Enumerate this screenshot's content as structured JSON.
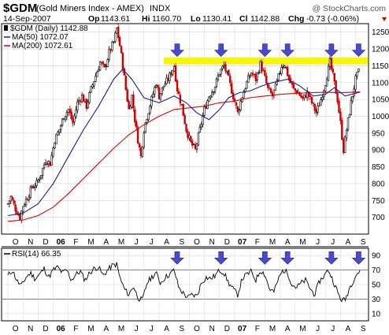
{
  "header": {
    "symbol": "$GDM",
    "name": "(Gold Miners Index - AMEX)",
    "exchange": "INDX",
    "date": "14-Sep-2007",
    "open_label": "Op",
    "open": "1143.61",
    "high_label": "Hi",
    "high": "1160.70",
    "low_label": "Lo",
    "low": "1130.41",
    "close_label": "Cl",
    "close": "1142.88",
    "chg_label": "Chg",
    "chg": "-0.73 (-0.06%)",
    "watermark": "@ StockCharts.com"
  },
  "legend": {
    "price": "$GDM (Daily) 1142.88",
    "ma50": "MA(50) 1072.07",
    "ma200": "MA(200) 1072.61",
    "rsi": "RSI(14) 66.35"
  },
  "colors": {
    "ma50": "#1a1f8c",
    "ma200": "#e00000",
    "up": "#000000",
    "down": "#cc0000",
    "highlight": "#f6f600",
    "arrow": "#4a4ad0",
    "grid": "#d4d4d4",
    "chg": "#cc0000"
  },
  "x_labels": [
    {
      "label": "O",
      "month": 0,
      "bold": false
    },
    {
      "label": "N",
      "month": 1,
      "bold": false
    },
    {
      "label": "D",
      "month": 2,
      "bold": false
    },
    {
      "label": "06",
      "month": 3,
      "bold": true
    },
    {
      "label": "F",
      "month": 4,
      "bold": false
    },
    {
      "label": "M",
      "month": 5,
      "bold": false
    },
    {
      "label": "A",
      "month": 6,
      "bold": false
    },
    {
      "label": "M",
      "month": 7,
      "bold": false
    },
    {
      "label": "J",
      "month": 8,
      "bold": false
    },
    {
      "label": "J",
      "month": 9,
      "bold": false
    },
    {
      "label": "A",
      "month": 10,
      "bold": false
    },
    {
      "label": "S",
      "month": 11,
      "bold": false
    },
    {
      "label": "O",
      "month": 12,
      "bold": false
    },
    {
      "label": "N",
      "month": 13,
      "bold": false
    },
    {
      "label": "D",
      "month": 14,
      "bold": false
    },
    {
      "label": "07",
      "month": 15,
      "bold": true
    },
    {
      "label": "F",
      "month": 16,
      "bold": false
    },
    {
      "label": "M",
      "month": 17,
      "bold": false
    },
    {
      "label": "A",
      "month": 18,
      "bold": false
    },
    {
      "label": "M",
      "month": 19,
      "bold": false
    },
    {
      "label": "J",
      "month": 20,
      "bold": false
    },
    {
      "label": "J",
      "month": 21,
      "bold": false
    },
    {
      "label": "A",
      "month": 22,
      "bold": false
    },
    {
      "label": "S",
      "month": 23,
      "bold": false
    }
  ],
  "chart_data": [
    {
      "type": "candlestick",
      "ylim": [
        650,
        1275
      ],
      "y_ticks": [
        700,
        750,
        800,
        850,
        900,
        950,
        1000,
        1050,
        1100,
        1150,
        1200,
        1250
      ],
      "x_unit": "months since Oct 2005",
      "price_path": [
        [
          0,
          740
        ],
        [
          0.2,
          760
        ],
        [
          0.5,
          725
        ],
        [
          0.8,
          700
        ],
        [
          1.0,
          735
        ],
        [
          1.3,
          760
        ],
        [
          1.6,
          790
        ],
        [
          1.9,
          800
        ],
        [
          2.2,
          830
        ],
        [
          2.5,
          870
        ],
        [
          2.8,
          860
        ],
        [
          3.1,
          930
        ],
        [
          3.4,
          960
        ],
        [
          3.7,
          1000
        ],
        [
          4.0,
          1020
        ],
        [
          4.3,
          980
        ],
        [
          4.6,
          1040
        ],
        [
          4.9,
          1060
        ],
        [
          5.2,
          1030
        ],
        [
          5.5,
          1080
        ],
        [
          5.8,
          1120
        ],
        [
          6.1,
          1160
        ],
        [
          6.4,
          1140
        ],
        [
          6.7,
          1190
        ],
        [
          7.0,
          1220
        ],
        [
          7.2,
          1260
        ],
        [
          7.4,
          1210
        ],
        [
          7.6,
          1150
        ],
        [
          7.8,
          1080
        ],
        [
          8.0,
          1020
        ],
        [
          8.2,
          1060
        ],
        [
          8.4,
          990
        ],
        [
          8.6,
          930
        ],
        [
          8.8,
          880
        ],
        [
          9.0,
          960
        ],
        [
          9.2,
          1000
        ],
        [
          9.5,
          1050
        ],
        [
          9.8,
          1100
        ],
        [
          10.0,
          1060
        ],
        [
          10.3,
          1090
        ],
        [
          10.6,
          1110
        ],
        [
          11.0,
          1150
        ],
        [
          11.2,
          1080
        ],
        [
          11.5,
          1030
        ],
        [
          11.8,
          960
        ],
        [
          12.1,
          920
        ],
        [
          12.4,
          900
        ],
        [
          12.7,
          960
        ],
        [
          13.0,
          1020
        ],
        [
          13.3,
          1060
        ],
        [
          13.7,
          1090
        ],
        [
          14.0,
          1130
        ],
        [
          14.3,
          1150
        ],
        [
          14.6,
          1110
        ],
        [
          14.9,
          1060
        ],
        [
          15.2,
          1010
        ],
        [
          15.5,
          1060
        ],
        [
          15.8,
          1100
        ],
        [
          16.1,
          1130
        ],
        [
          16.4,
          1110
        ],
        [
          16.7,
          1155
        ],
        [
          16.9,
          1130
        ],
        [
          17.2,
          1080
        ],
        [
          17.5,
          1060
        ],
        [
          17.8,
          1100
        ],
        [
          18.1,
          1150
        ],
        [
          18.3,
          1155
        ],
        [
          18.6,
          1110
        ],
        [
          18.9,
          1080
        ],
        [
          19.2,
          1070
        ],
        [
          19.5,
          1050
        ],
        [
          19.8,
          1070
        ],
        [
          20.1,
          1040
        ],
        [
          20.4,
          1010
        ],
        [
          20.7,
          1050
        ],
        [
          21.0,
          1100
        ],
        [
          21.3,
          1160
        ],
        [
          21.5,
          1120
        ],
        [
          21.8,
          1050
        ],
        [
          22.0,
          980
        ],
        [
          22.2,
          900
        ],
        [
          22.4,
          960
        ],
        [
          22.7,
          1040
        ],
        [
          23.0,
          1110
        ],
        [
          23.3,
          1143
        ]
      ],
      "ma50_path": [
        [
          0,
          705
        ],
        [
          1,
          712
        ],
        [
          2,
          740
        ],
        [
          3,
          800
        ],
        [
          4,
          880
        ],
        [
          5,
          960
        ],
        [
          6,
          1030
        ],
        [
          7,
          1110
        ],
        [
          7.6,
          1140
        ],
        [
          8.2,
          1110
        ],
        [
          9.0,
          1055
        ],
        [
          10.0,
          1040
        ],
        [
          11.0,
          1060
        ],
        [
          11.8,
          1040
        ],
        [
          12.5,
          1010
        ],
        [
          13.3,
          990
        ],
        [
          14.0,
          1020
        ],
        [
          14.6,
          1055
        ],
        [
          15.3,
          1070
        ],
        [
          16.0,
          1075
        ],
        [
          16.8,
          1090
        ],
        [
          17.5,
          1100
        ],
        [
          18.5,
          1110
        ],
        [
          19.3,
          1090
        ],
        [
          20.2,
          1060
        ],
        [
          21.0,
          1065
        ],
        [
          21.6,
          1085
        ],
        [
          22.3,
          1060
        ],
        [
          23.3,
          1072
        ]
      ],
      "ma200_path": [
        [
          0,
          688
        ],
        [
          1,
          692
        ],
        [
          2,
          705
        ],
        [
          3,
          730
        ],
        [
          4,
          770
        ],
        [
          5,
          815
        ],
        [
          6,
          860
        ],
        [
          7,
          905
        ],
        [
          8,
          945
        ],
        [
          9,
          975
        ],
        [
          10,
          1000
        ],
        [
          11,
          1020
        ],
        [
          12,
          1025
        ],
        [
          13,
          1030
        ],
        [
          14,
          1040
        ],
        [
          15,
          1045
        ],
        [
          16,
          1055
        ],
        [
          17,
          1060
        ],
        [
          18,
          1065
        ],
        [
          19,
          1068
        ],
        [
          20,
          1070
        ],
        [
          21,
          1071
        ],
        [
          22,
          1070
        ],
        [
          23.3,
          1072
        ]
      ],
      "highlight_band": [
        1155,
        1175
      ],
      "arrow_months": [
        11.2,
        14.1,
        17.0,
        18.5,
        21.4,
        23.2
      ]
    },
    {
      "type": "line",
      "name": "RSI(14)",
      "ylim": [
        0,
        100
      ],
      "y_ticks": [
        10,
        30,
        50,
        70,
        90
      ],
      "ref_lines": [
        30,
        70
      ],
      "rsi_path": [
        [
          0,
          62
        ],
        [
          0.3,
          70
        ],
        [
          0.6,
          55
        ],
        [
          0.9,
          48
        ],
        [
          1.2,
          60
        ],
        [
          1.5,
          66
        ],
        [
          1.8,
          58
        ],
        [
          2.1,
          64
        ],
        [
          2.4,
          72
        ],
        [
          2.7,
          60
        ],
        [
          3.0,
          70
        ],
        [
          3.3,
          74
        ],
        [
          3.6,
          66
        ],
        [
          3.9,
          70
        ],
        [
          4.2,
          56
        ],
        [
          4.5,
          64
        ],
        [
          4.8,
          68
        ],
        [
          5.1,
          56
        ],
        [
          5.4,
          66
        ],
        [
          5.7,
          72
        ],
        [
          6.0,
          74
        ],
        [
          6.3,
          62
        ],
        [
          6.6,
          70
        ],
        [
          6.9,
          76
        ],
        [
          7.2,
          78
        ],
        [
          7.4,
          60
        ],
        [
          7.7,
          44
        ],
        [
          8.0,
          36
        ],
        [
          8.3,
          48
        ],
        [
          8.6,
          32
        ],
        [
          8.9,
          28
        ],
        [
          9.2,
          52
        ],
        [
          9.5,
          60
        ],
        [
          9.8,
          66
        ],
        [
          10.1,
          52
        ],
        [
          10.4,
          60
        ],
        [
          10.7,
          64
        ],
        [
          11.0,
          70
        ],
        [
          11.3,
          46
        ],
        [
          11.6,
          38
        ],
        [
          11.9,
          32
        ],
        [
          12.2,
          36
        ],
        [
          12.5,
          34
        ],
        [
          12.8,
          52
        ],
        [
          13.1,
          60
        ],
        [
          13.4,
          58
        ],
        [
          13.7,
          62
        ],
        [
          14.0,
          70
        ],
        [
          14.3,
          66
        ],
        [
          14.6,
          52
        ],
        [
          14.9,
          44
        ],
        [
          15.2,
          36
        ],
        [
          15.5,
          58
        ],
        [
          15.8,
          64
        ],
        [
          16.1,
          68
        ],
        [
          16.4,
          56
        ],
        [
          16.7,
          70
        ],
        [
          17.0,
          64
        ],
        [
          17.3,
          44
        ],
        [
          17.6,
          40
        ],
        [
          17.9,
          58
        ],
        [
          18.2,
          70
        ],
        [
          18.5,
          66
        ],
        [
          18.8,
          50
        ],
        [
          19.1,
          46
        ],
        [
          19.4,
          52
        ],
        [
          19.7,
          56
        ],
        [
          20.0,
          44
        ],
        [
          20.3,
          36
        ],
        [
          20.6,
          54
        ],
        [
          20.9,
          62
        ],
        [
          21.2,
          70
        ],
        [
          21.5,
          56
        ],
        [
          21.8,
          40
        ],
        [
          22.0,
          30
        ],
        [
          22.3,
          28
        ],
        [
          22.6,
          46
        ],
        [
          22.9,
          58
        ],
        [
          23.1,
          66
        ],
        [
          23.3,
          66
        ]
      ],
      "arrow_months": [
        11.2,
        14.1,
        17.0,
        18.5,
        21.4,
        23.2
      ]
    }
  ]
}
